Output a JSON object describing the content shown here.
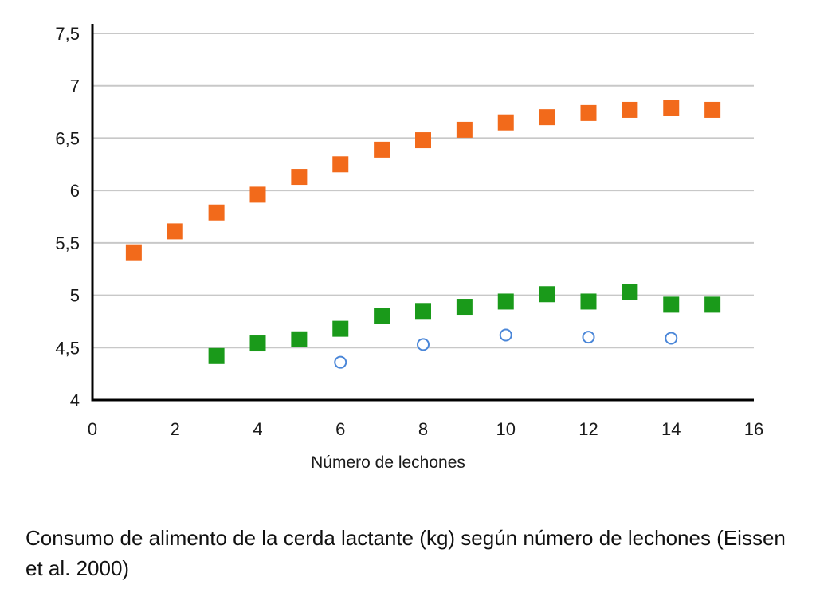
{
  "caption": "Consumo de alimento de la cerda lactante (kg) según número de lechones (Eissen et al. 2000)",
  "chart_data": {
    "type": "scatter",
    "title": "",
    "xlabel": "Número de lechones",
    "ylabel": "",
    "xlim": [
      0,
      16
    ],
    "ylim": [
      4,
      7.5
    ],
    "xticks": [
      0,
      2,
      4,
      6,
      8,
      10,
      12,
      14,
      16
    ],
    "xtick_labels": [
      "0",
      "2",
      "4",
      "6",
      "8",
      "10",
      "12",
      "14",
      "16"
    ],
    "yticks": [
      4,
      4.5,
      5,
      5.5,
      6,
      6.5,
      7,
      7.5
    ],
    "ytick_labels": [
      "4",
      "4,5",
      "5",
      "5,5",
      "6",
      "6,5",
      "7",
      "7,5"
    ],
    "grid": true,
    "legend": "none",
    "series": [
      {
        "marker": "square",
        "color": "#f26a1b",
        "x": [
          1,
          2,
          3,
          4,
          5,
          6,
          7,
          8,
          9,
          10,
          11,
          12,
          13,
          14,
          15
        ],
        "y": [
          5.41,
          5.61,
          5.79,
          5.96,
          6.13,
          6.25,
          6.39,
          6.48,
          6.58,
          6.65,
          6.7,
          6.74,
          6.77,
          6.79,
          6.77
        ]
      },
      {
        "marker": "square",
        "color": "#1a9a1a",
        "x": [
          3,
          4,
          5,
          6,
          7,
          8,
          9,
          10,
          11,
          12,
          13,
          14,
          15
        ],
        "y": [
          4.42,
          4.54,
          4.58,
          4.68,
          4.8,
          4.85,
          4.89,
          4.94,
          5.01,
          4.94,
          5.03,
          4.91,
          4.91
        ]
      },
      {
        "marker": "circle-open",
        "color": "#4a86d8",
        "x": [
          6,
          8,
          10,
          12,
          14
        ],
        "y": [
          4.36,
          4.53,
          4.62,
          4.6,
          4.59
        ]
      }
    ]
  }
}
